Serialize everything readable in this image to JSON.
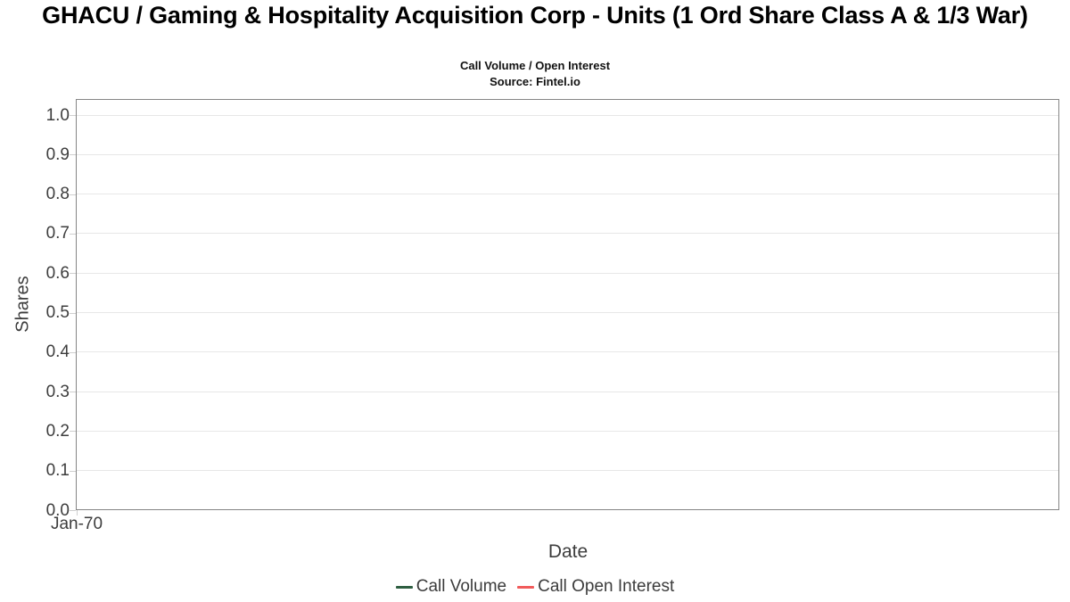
{
  "chart_data": {
    "type": "line",
    "title": "GHACU / Gaming & Hospitality Acquisition Corp - Units (1 Ord Share Class A & 1/3 War)",
    "subtitle": "Call Volume / Open Interest",
    "source": "Source: Fintel.io",
    "xlabel": "Date",
    "ylabel": "Shares",
    "ylim": [
      0.0,
      1.0
    ],
    "ytick_labels": [
      "0.0",
      "0.1",
      "0.2",
      "0.3",
      "0.4",
      "0.5",
      "0.6",
      "0.7",
      "0.8",
      "0.9",
      "1.0"
    ],
    "xtick_labels": [
      "Jan-70"
    ],
    "grid": "horizontal-only",
    "legend_position": "bottom-center",
    "colors": {
      "plot_border": "#858585",
      "gridline": "#e7e7e7",
      "tick_mark": "#cfcfcf",
      "axis_text": "#3d3d3d",
      "call_volume_green": "#2e5e41",
      "call_open_interest_red": "#f15b5b"
    },
    "series": [
      {
        "name": "Call Volume",
        "color": "#2e5e41",
        "x": [],
        "values": []
      },
      {
        "name": "Call Open Interest",
        "color": "#f15b5b",
        "x": [],
        "values": []
      }
    ]
  }
}
